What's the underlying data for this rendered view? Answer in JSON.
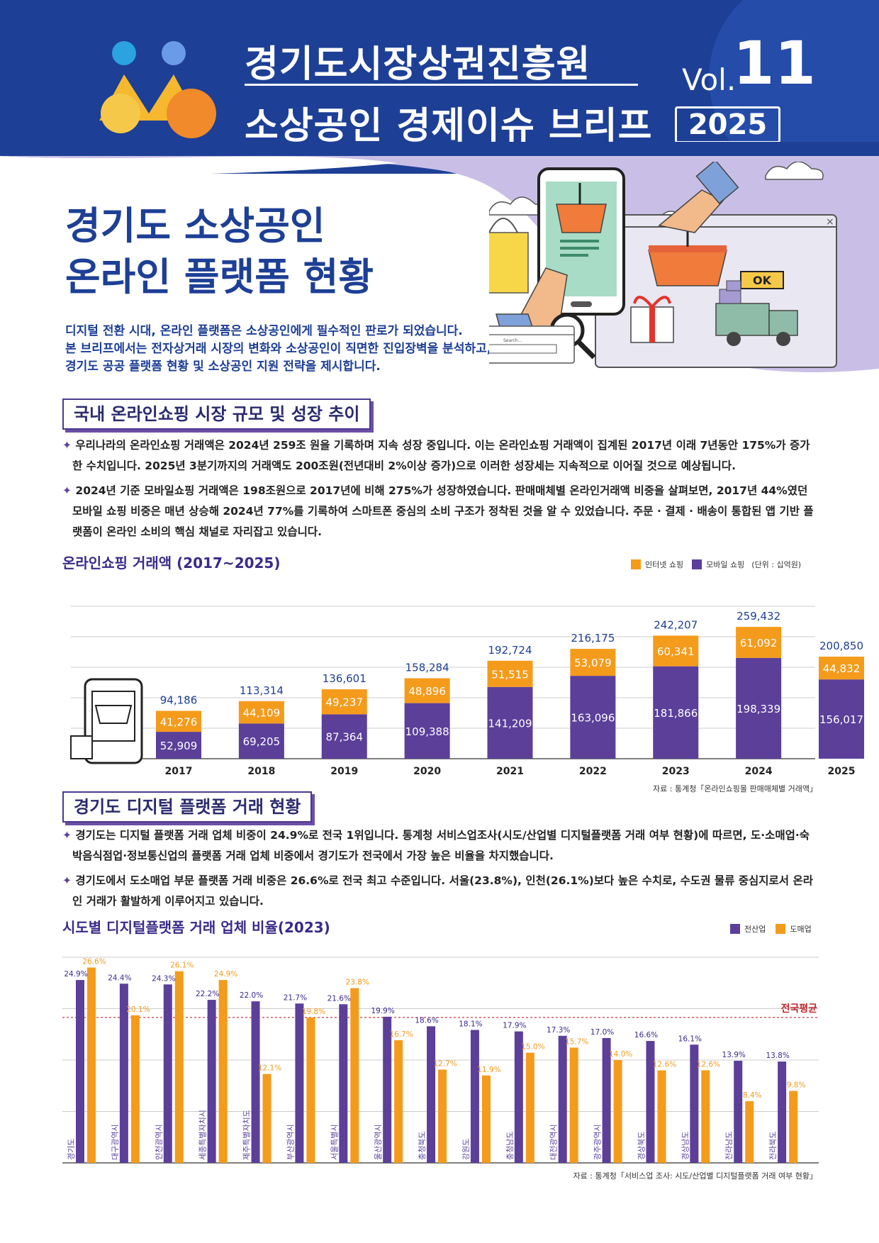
{
  "header": {
    "org_title": "경기도시장상권진흥원",
    "brief_title": "소상공인 경제이슈 브리프",
    "vol_label": "Vol.",
    "vol_number": "11",
    "year": "2025"
  },
  "main": {
    "title_line1": "경기도 소상공인",
    "title_line2": "온라인 플랫폼 현황",
    "intro_lines": [
      "디지털 전환 시대, 온라인 플랫폼은 소상공인에게 필수적인 판로가 되었습니다.",
      "본 브리프에서는 전자상거래 시장의 변화와 소상공인이 직면한 진입장벽을 분석하고,",
      "경기도 공공 플랫폼 현황 및 소상공인 지원 전략을 제시합니다."
    ]
  },
  "illustration": {
    "search_label": "Search...",
    "ok_label": "OK"
  },
  "section1": {
    "title": "국내 온라인쇼핑 시장 규모 및 성장 추이",
    "bullet1": "우리나라의 온라인쇼핑 거래액은 2024년 259조 원을 기록하며 지속 성장 중입니다. 이는 온라인쇼핑 거래액이 집계된 2017년 이래 7년동안 175%가 증가한 수치입니다. 2025년 3분기까지의 거래액도 200조원(전년대비 2%이상 증가)으로 이러한  성장세는 지속적으로 이어질 것으로 예상됩니다.",
    "bullet2": "2024년 기준 모바일쇼핑 거래액은 198조원으로 2017년에 비해 275%가 성장하였습니다. 판매매체별 온라인거래액 비중을 살펴보면, 2017년 44%였던 모바일 쇼핑 비중은 매년 상승해 2024년 77%를 기록하여 스마트폰 중심의 소비 구조가 정착된 것을 알 수 있었습니다. 주문 · 결제 · 배송이 통합된 앱 기반 플랫폼이 온라인 소비의 핵심 채널로 자리잡고 있습니다.",
    "bullet_mark": "✦",
    "chart_title": "온라인쇼핑 거래액 (2017~2025)",
    "legend_internet": "인터넷 쇼핑",
    "legend_mobile": "모바일 쇼핑",
    "unit": "(단위 : 십억원)",
    "source": "자료 : 통계청「온라인쇼핑몰 판매매체별 거래액」"
  },
  "section2": {
    "title": "경기도 디지털 플랫폼 거래 현황",
    "bullet1": "경기도는 디지털 플랫폼 거래 업체 비중이 24.9%로 전국 1위입니다. 통계청 서비스업조사(시도/산업별 디지털플랫폼 거래 여부 현황)에 따르면, 도·소매업·숙박음식점업·정보통신업의 플랫폼 거래 업체 비중에서 경기도가 전국에서 가장 높은 비율을 차지했습니다.",
    "bullet2": "경기도에서 도소매업 부문 플랫폼 거래 비중은 26.6%로 전국 최고 수준입니다. 서울(23.8%), 인천(26.1%)보다 높은 수치로, 수도권 물류 중심지로서 온라인 거래가 활발하게 이루어지고 있습니다.",
    "chart_title": "시도별 디지털플랫폼 거래 업체 비율(2023)",
    "legend_all": "전산업",
    "legend_retail": "도매업",
    "avg_label": "전국평균",
    "source": "자료 : 통계청「서비스업 조사: 시도/산업별 디지털플랫폼 거래 여부 현황」"
  },
  "colors": {
    "navy": "#1d3f95",
    "purple": "#5b3f99",
    "orange": "#f49b1c",
    "red": "#c0282d"
  },
  "chart_data": [
    {
      "type": "bar",
      "stacked": true,
      "title": "온라인쇼핑 거래액 (2017~2025)",
      "unit": "십억원",
      "categories": [
        "2017",
        "2018",
        "2019",
        "2020",
        "2021",
        "2022",
        "2023",
        "2024",
        "2025"
      ],
      "series": [
        {
          "name": "모바일 쇼핑",
          "values": [
            52909,
            69205,
            87364,
            109388,
            141209,
            163096,
            181866,
            198339,
            156017
          ]
        },
        {
          "name": "인터넷 쇼핑",
          "values": [
            41276,
            44109,
            49237,
            48896,
            51515,
            53079,
            60341,
            61092,
            44832
          ]
        }
      ],
      "totals": [
        94186,
        113314,
        136601,
        158284,
        192724,
        216175,
        242207,
        259432,
        200850
      ],
      "ylim": [
        0,
        300000
      ],
      "legend_position": "top-right"
    },
    {
      "type": "bar",
      "title": "시도별 디지털플랫폼 거래 업체 비율(2023)",
      "categories": [
        "경기도",
        "대구광역시",
        "인천광역시",
        "세종특별자치시",
        "제주특별자치도",
        "부산광역시",
        "서울특별시",
        "울산광역시",
        "충청북도",
        "강원도",
        "충청남도",
        "대전광역시",
        "광주광역시",
        "경상북도",
        "경상남도",
        "전라남도",
        "전라북도"
      ],
      "series": [
        {
          "name": "전산업",
          "values": [
            24.9,
            24.4,
            24.3,
            22.2,
            22.0,
            21.7,
            21.6,
            19.9,
            18.6,
            18.1,
            17.9,
            17.3,
            17.0,
            16.6,
            16.1,
            13.9,
            13.8
          ]
        },
        {
          "name": "도매업",
          "values": [
            26.6,
            20.1,
            26.1,
            24.9,
            12.1,
            19.8,
            23.8,
            16.7,
            12.7,
            11.9,
            15.0,
            15.7,
            14.0,
            12.6,
            12.6,
            8.4,
            9.8
          ]
        }
      ],
      "national_average": 19.8,
      "ylim": [
        0,
        28
      ],
      "legend_position": "top-right"
    }
  ]
}
